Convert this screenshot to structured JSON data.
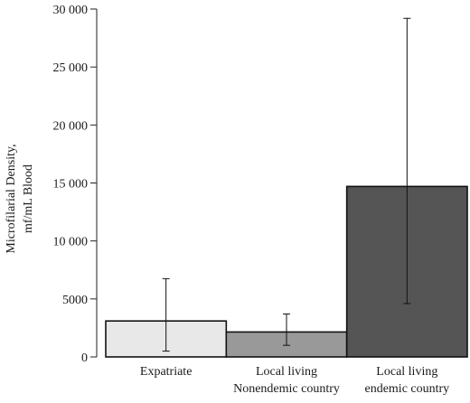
{
  "chart_data": {
    "type": "bar",
    "ylabel_lines": [
      "Microfilarial Density,",
      "mf/mL Blood"
    ],
    "categories": [
      [
        "Expatriate"
      ],
      [
        "Local living",
        "Nonendemic country"
      ],
      [
        "Local living",
        "endemic country"
      ]
    ],
    "values": [
      3100,
      2150,
      14700
    ],
    "error_low": [
      500,
      1000,
      4600
    ],
    "error_high": [
      6750,
      3700,
      29200
    ],
    "colors": [
      "#e8e8e8",
      "#999999",
      "#555555"
    ],
    "ylim": [
      0,
      30000
    ],
    "yticks": [
      0,
      5000,
      10000,
      15000,
      20000,
      25000,
      30000
    ],
    "ytick_labels": [
      "0",
      "5000",
      "10 000",
      "15 000",
      "20 000",
      "25 000",
      "30 000"
    ],
    "grid": false,
    "legend": "none"
  }
}
